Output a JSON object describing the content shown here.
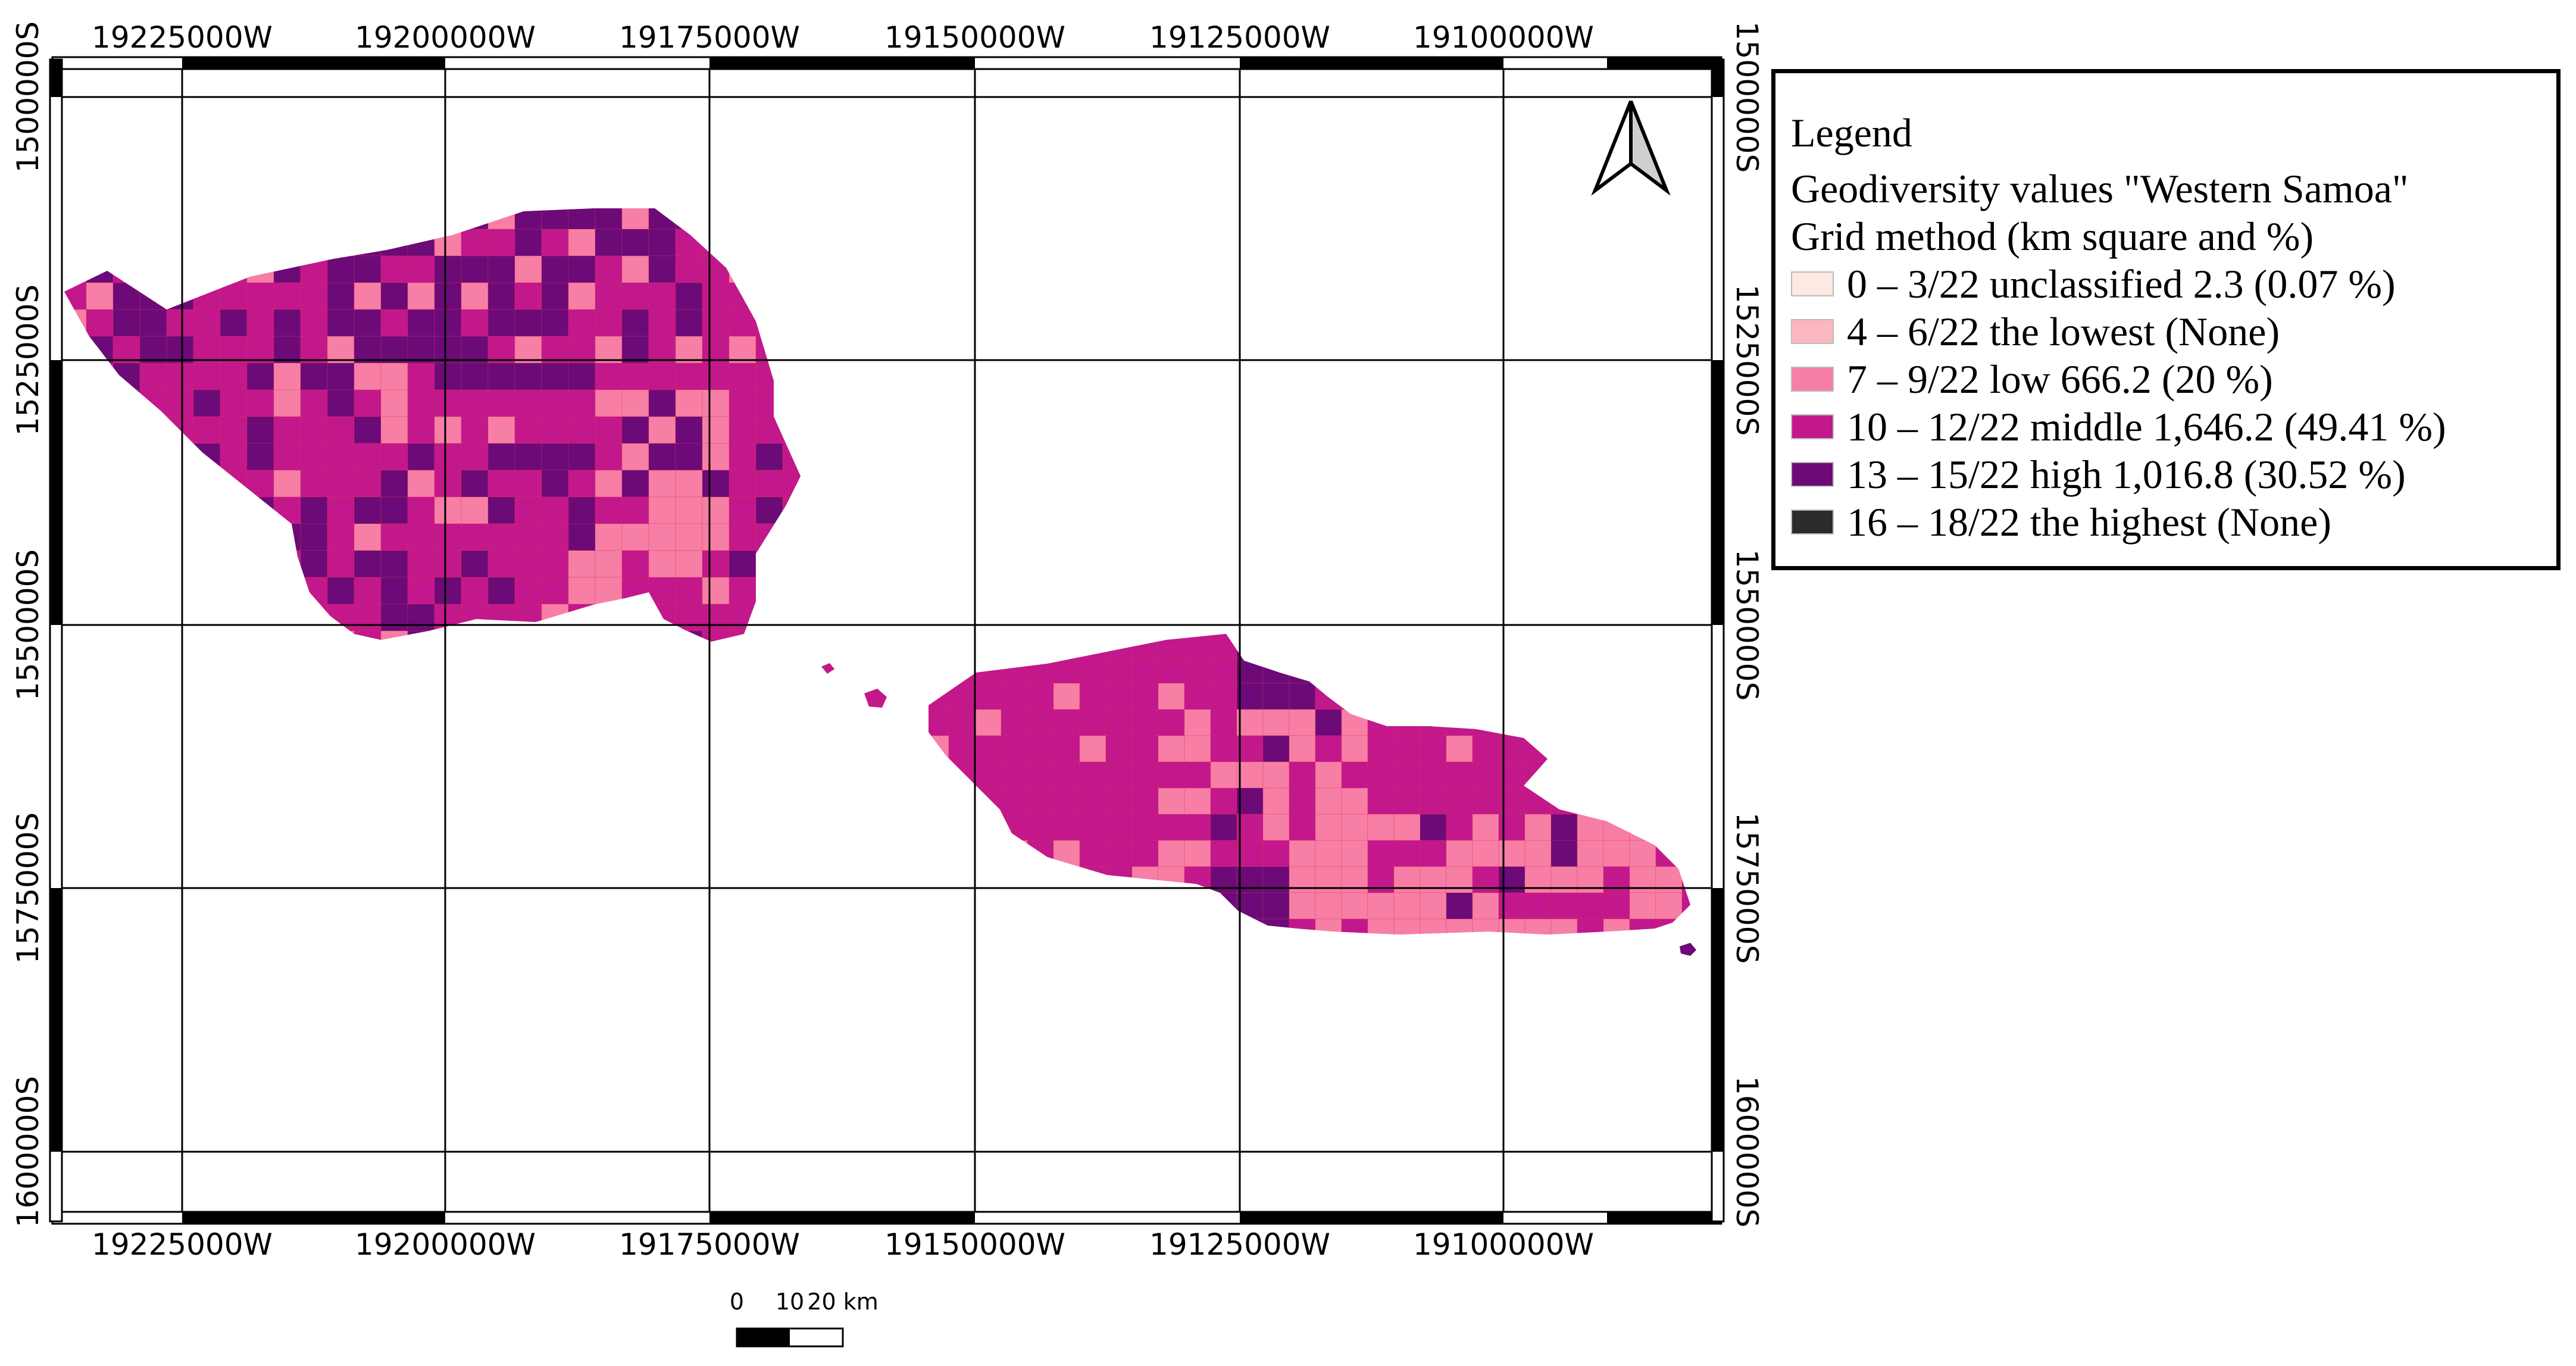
{
  "map": {
    "top_labels": [
      "19225000W",
      "19200000W",
      "19175000W",
      "19150000W",
      "19125000W",
      "19100000W"
    ],
    "bottom_labels": [
      "19225000W",
      "19200000W",
      "19175000W",
      "19150000W",
      "19125000W",
      "19100000W"
    ],
    "right_labels": [
      "1500000S",
      "1525000S",
      "1550000S",
      "1575000S",
      "1600000S"
    ],
    "left_labels": [
      "1500000S",
      "1525000S",
      "1550000S",
      "1575000S",
      "1600000S"
    ],
    "north_arrow": "north-arrow-icon"
  },
  "legend": {
    "heading": "Legend",
    "title": "Geodiversity values \"Western Samoa\"",
    "subtitle": "Grid method (km square and %)",
    "items": [
      {
        "label": "0 – 3/22 unclassified 2.3 (0.07 %)",
        "color": "#fde8e4"
      },
      {
        "label": "4 – 6/22 the lowest (None)",
        "color": "#fbb6bf"
      },
      {
        "label": "7 – 9/22 low 666.2 (20 %)",
        "color": "#f77fa6"
      },
      {
        "label": "10 – 12/22 middle 1,646.2 (49.41 %)",
        "color": "#c2188b"
      },
      {
        "label": "13 – 15/22 high 1,016.8 (30.52 %)",
        "color": "#6c0a78"
      },
      {
        "label": "16 – 18/22 the highest (None)",
        "color": "#2b2b2b"
      }
    ]
  },
  "scale_bar": {
    "labels": [
      "0",
      "10",
      "20 km"
    ]
  },
  "colors": {
    "unclassified": "#fde8e4",
    "lowest": "#fbb6bf",
    "low": "#f77fa6",
    "middle": "#c2188b",
    "high": "#6c0a78",
    "highest": "#2b2b2b"
  }
}
